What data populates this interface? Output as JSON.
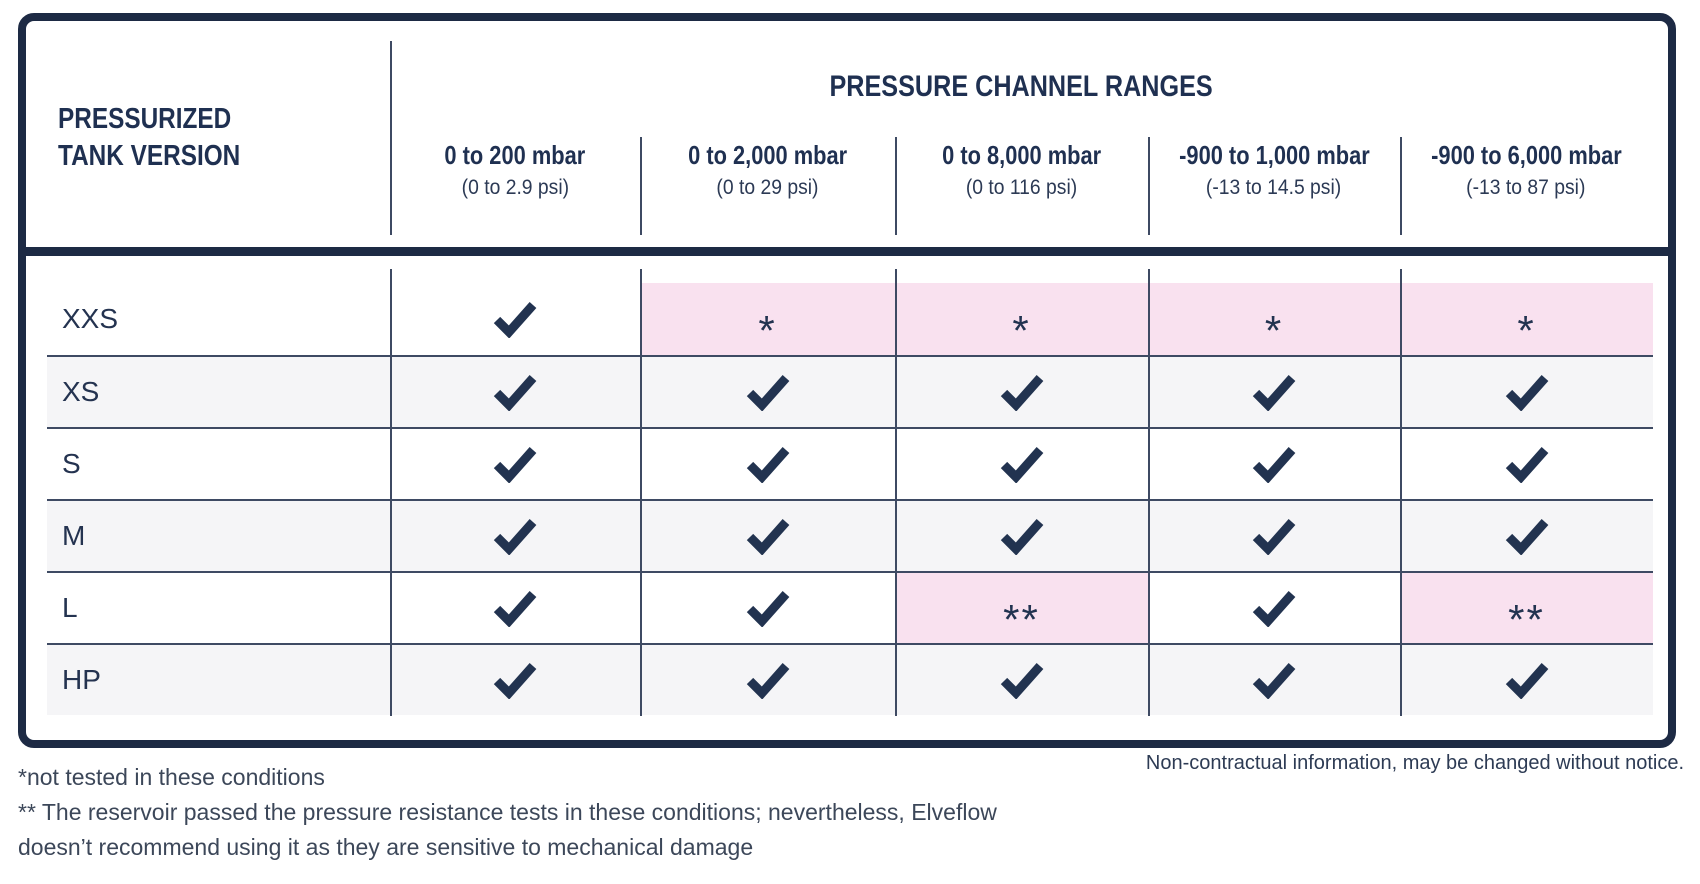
{
  "table": {
    "row_header": {
      "line1": "PRESSURIZED",
      "line2": "TANK VERSION"
    },
    "group_header": "PRESSURE CHANNEL RANGES",
    "columns": [
      {
        "mbar": "0 to 200 mbar",
        "psi": "(0 to 2.9 psi)"
      },
      {
        "mbar": "0 to 2,000 mbar",
        "psi": "(0 to 29 psi)"
      },
      {
        "mbar": "0 to 8,000 mbar",
        "psi": "(0 to 116 psi)"
      },
      {
        "mbar": "-900 to 1,000 mbar",
        "psi": "(-13 to 14.5 psi)"
      },
      {
        "mbar": "-900 to 6,000 mbar",
        "psi": "(-13 to 87 psi)"
      }
    ],
    "rows": [
      {
        "label": "XXS",
        "shaded": false,
        "cells": [
          "check",
          "star",
          "star",
          "star",
          "star"
        ]
      },
      {
        "label": "XS",
        "shaded": true,
        "cells": [
          "check",
          "check",
          "check",
          "check",
          "check"
        ]
      },
      {
        "label": "S",
        "shaded": false,
        "cells": [
          "check",
          "check",
          "check",
          "check",
          "check"
        ]
      },
      {
        "label": "M",
        "shaded": true,
        "cells": [
          "check",
          "check",
          "check",
          "check",
          "check"
        ]
      },
      {
        "label": "L",
        "shaded": false,
        "cells": [
          "check",
          "check",
          "doublestar",
          "check",
          "doublestar"
        ]
      },
      {
        "label": "HP",
        "shaded": true,
        "cells": [
          "check",
          "check",
          "check",
          "check",
          "check"
        ]
      }
    ],
    "cell_symbols": {
      "star": "*",
      "doublestar": "**"
    }
  },
  "chart_data": {
    "type": "table",
    "title": "PRESSURE CHANNEL RANGES",
    "row_header": "PRESSURIZED TANK VERSION",
    "columns": [
      "0 to 200 mbar (0 to 2.9 psi)",
      "0 to 2,000 mbar (0 to 29 psi)",
      "0 to 8,000 mbar (0 to 116 psi)",
      "-900 to 1,000 mbar (-13 to 14.5 psi)",
      "-900 to 6,000 mbar (-13 to 87 psi)"
    ],
    "rows": [
      "XXS",
      "XS",
      "S",
      "M",
      "L",
      "HP"
    ],
    "cells": [
      [
        "check",
        "*",
        "*",
        "*",
        "*"
      ],
      [
        "check",
        "check",
        "check",
        "check",
        "check"
      ],
      [
        "check",
        "check",
        "check",
        "check",
        "check"
      ],
      [
        "check",
        "check",
        "check",
        "check",
        "check"
      ],
      [
        "check",
        "check",
        "**",
        "check",
        "**"
      ],
      [
        "check",
        "check",
        "check",
        "check",
        "check"
      ]
    ],
    "highlighted_cells_note": "cells containing * or ** have a pink background"
  },
  "notes": {
    "non_contractual": "Non-contractual information, may be changed without notice.",
    "footnote_star": "*not tested in these conditions",
    "footnote_doublestar_line1": "** The reservoir passed the pressure resistance tests in these conditions; nevertheless, Elveflow",
    "footnote_doublestar_line2": "doesn’t recommend using it as they are sensitive to mechanical damage"
  },
  "colors": {
    "navy_border": "#1d2a44",
    "text_navy": "#1f3051",
    "check_navy": "#223350",
    "thin_line": "#3e4a63",
    "row_gray": "#f5f5f7",
    "highlight_pink": "#f9e1ef"
  }
}
